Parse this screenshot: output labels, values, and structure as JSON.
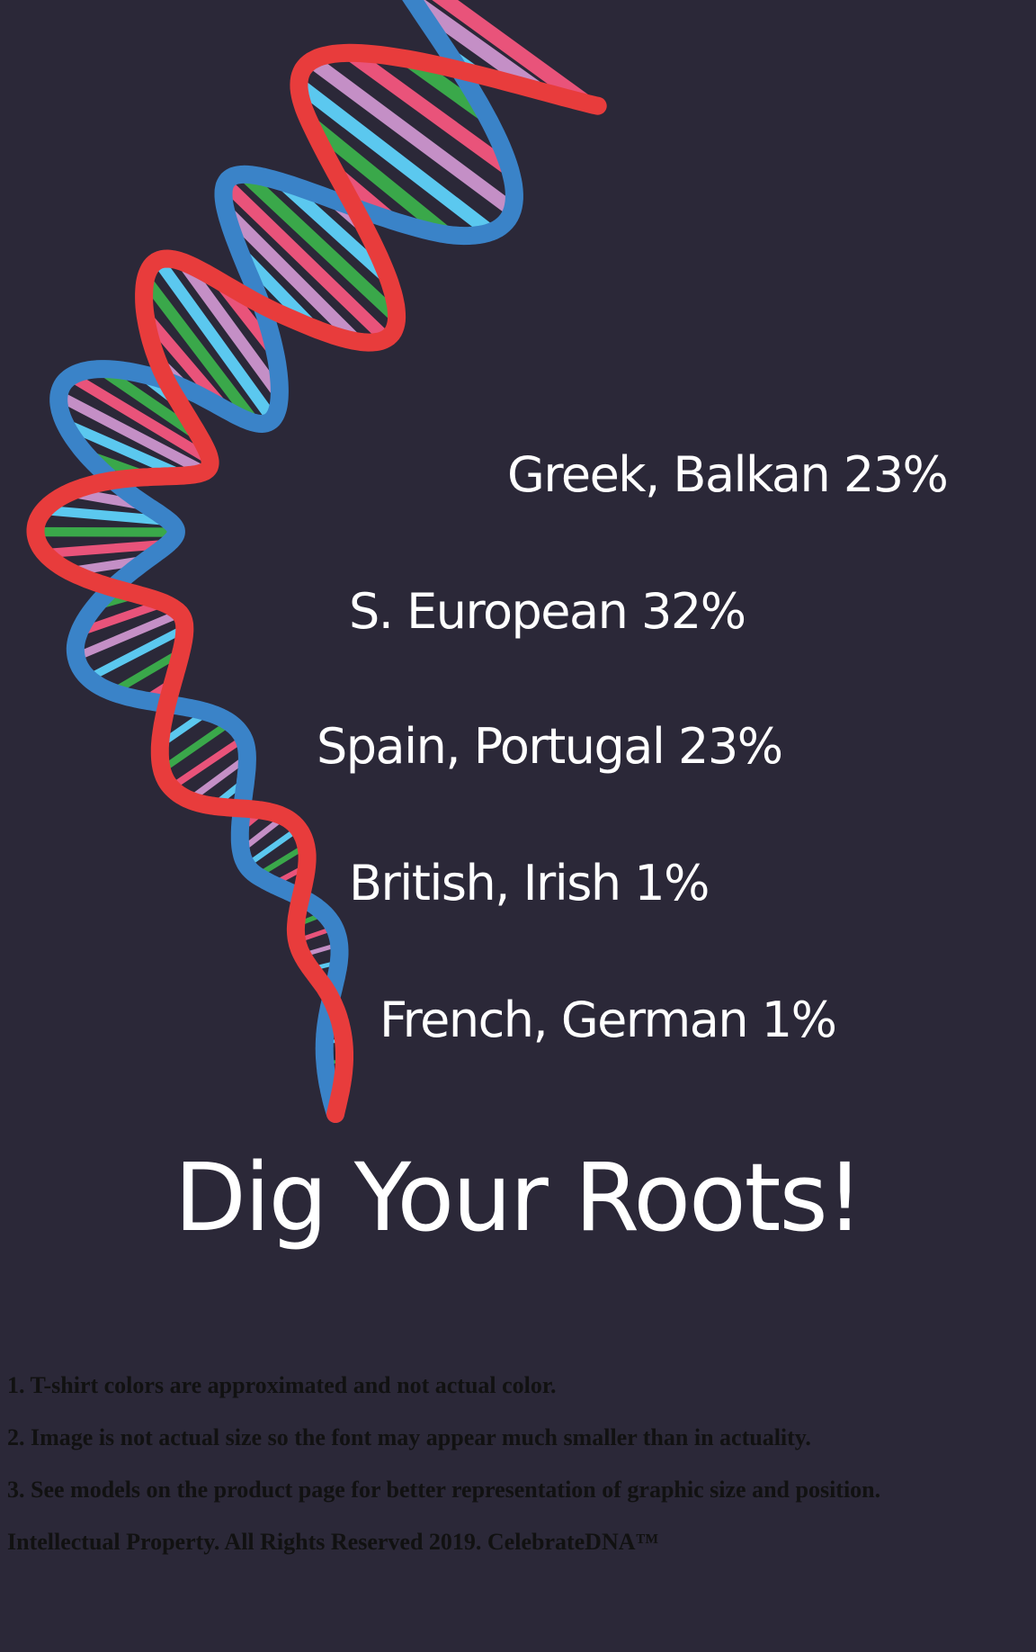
{
  "colors": {
    "background": "#2b2838",
    "strand_red": "#e83c3c",
    "strand_blue": "#3a83c8",
    "rung_cyan": "#5bc8ef",
    "rung_lilac": "#c48fc6",
    "rung_pink": "#e9537a",
    "rung_green": "#3aa84a",
    "text": "#ffffff",
    "footnote_text": "#111111"
  },
  "ancestry": [
    {
      "label": "Greek, Balkan 23%"
    },
    {
      "label": "S. European 32%"
    },
    {
      "label": "Spain, Portugal 23%"
    },
    {
      "label": "British, Irish 1%"
    },
    {
      "label": "French, German 1%"
    }
  ],
  "tagline": "Dig Your Roots!",
  "footnotes": [
    "1. T-shirt colors are approximated and not actual color.",
    "2. Image is not actual size so the font may appear much smaller than in actuality.",
    "3. See models on the product page for better representation of graphic size and position.",
    "Intellectual Property. All Rights Reserved 2019. CelebrateDNA™"
  ]
}
